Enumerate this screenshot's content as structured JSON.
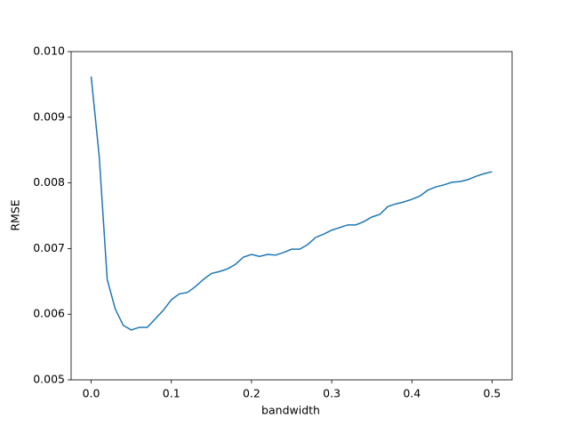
{
  "chart_data": {
    "type": "line",
    "x_label": "bandwidth",
    "y_label": "RMSE",
    "x": [
      0,
      0.01,
      0.02,
      0.03,
      0.04,
      0.05,
      0.06,
      0.07,
      0.08,
      0.09,
      0.1,
      0.11,
      0.12,
      0.13,
      0.14,
      0.15,
      0.16,
      0.17,
      0.18,
      0.19,
      0.2,
      0.21,
      0.22,
      0.23,
      0.24,
      0.25,
      0.26,
      0.27,
      0.28,
      0.29,
      0.3,
      0.31,
      0.32,
      0.33,
      0.34,
      0.35,
      0.36,
      0.37,
      0.38,
      0.39,
      0.4,
      0.41,
      0.42,
      0.43,
      0.44,
      0.45,
      0.46,
      0.47,
      0.48,
      0.49,
      0.5
    ],
    "values": [
      0.00962,
      0.00841,
      0.00653,
      0.00608,
      0.00583,
      0.00576,
      0.0058,
      0.0058,
      0.00593,
      0.00606,
      0.00622,
      0.00631,
      0.00633,
      0.00642,
      0.00653,
      0.00662,
      0.00665,
      0.00669,
      0.00676,
      0.00687,
      0.00691,
      0.00688,
      0.00691,
      0.0069,
      0.00694,
      0.00699,
      0.00699,
      0.00706,
      0.00717,
      0.00722,
      0.00728,
      0.00732,
      0.00736,
      0.00736,
      0.00741,
      0.00748,
      0.00752,
      0.00764,
      0.00768,
      0.00771,
      0.00775,
      0.0078,
      0.00789,
      0.00794,
      0.00797,
      0.00801,
      0.00802,
      0.00805,
      0.0081,
      0.00814,
      0.00817
    ],
    "color": "#1f77b4",
    "xlim": [
      -0.025,
      0.525
    ],
    "xticks": [
      {
        "value": 0,
        "label": "0.0"
      },
      0.1,
      0.2,
      0.3,
      0.4,
      0.5
    ],
    "ylim": [
      0.005,
      0.01
    ],
    "yticks": [
      0.005,
      0.006,
      0.007,
      0.008,
      0.009,
      {
        "value": 0.01,
        "label": "0.010"
      }
    ],
    "grid": false
  }
}
